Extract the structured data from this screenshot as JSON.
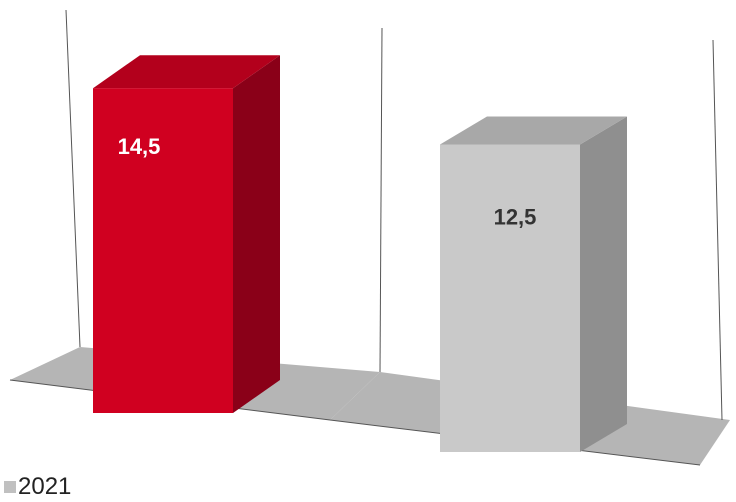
{
  "chart_data": {
    "type": "bar",
    "categories": [
      "",
      ""
    ],
    "values": [
      14.5,
      12.5
    ],
    "value_labels": [
      "14,5",
      "12,5"
    ],
    "series": [
      {
        "name": "2021",
        "values": [
          14.5,
          12.5
        ]
      }
    ],
    "colors": {
      "bar_1_front": "#d00020",
      "bar_1_side": "#8a0018",
      "bar_1_top": "#b3001c",
      "bar_2_front": "#c9c9c9",
      "bar_2_side": "#8f8f8f",
      "bar_2_top": "#a8a8a8",
      "floor": "#b5b5b5",
      "label_1": "#ffffff",
      "label_2": "#333333",
      "legend_swatch": "#c0c0c0"
    },
    "style": "3d-column",
    "grid": false
  },
  "legend": {
    "label": "2021"
  }
}
